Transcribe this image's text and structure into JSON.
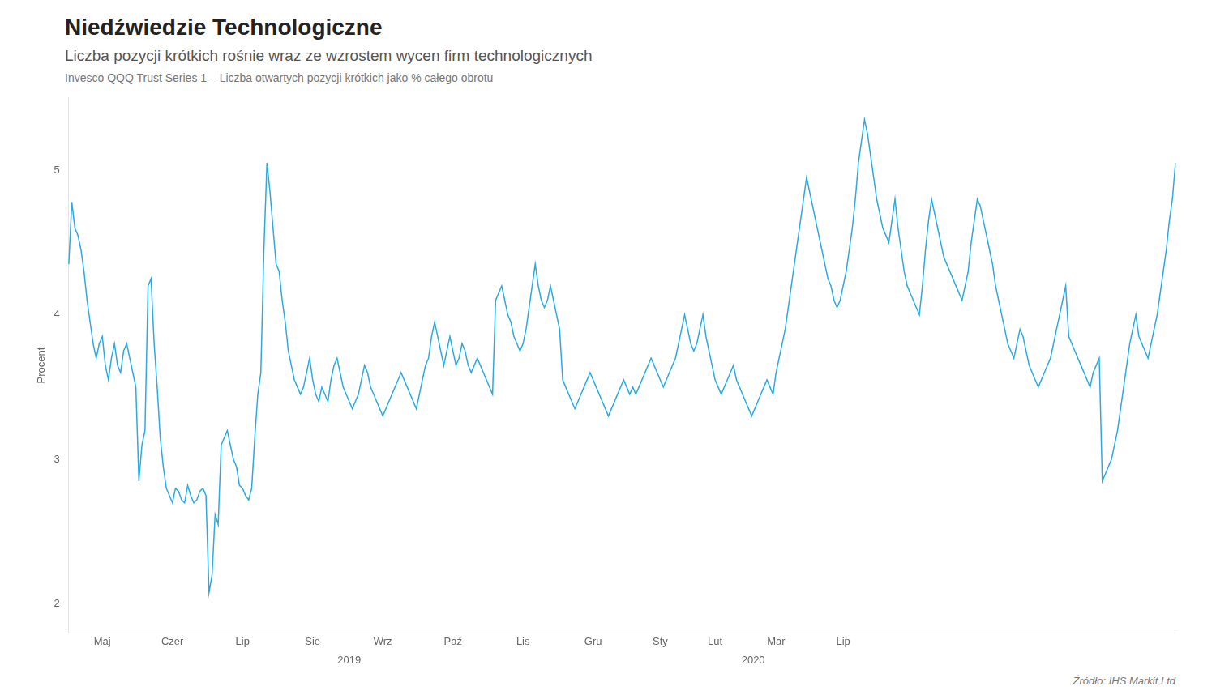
{
  "chart_data": {
    "type": "line",
    "title": "Niedźwiedzie Technologiczne",
    "subtitle": "Liczba pozycji krótkich rośnie wraz ze wzrostem wycen firm technologicznych",
    "caption": "Invesco QQQ Trust Series 1 – Liczba otwartych pozycji krótkich jako % całego obrotu",
    "source": "Źródło: IHS Markit Ltd",
    "ylabel": "Procent",
    "color": "#29abe2",
    "ylim": [
      1.8,
      5.5
    ],
    "yticks": [
      2,
      3,
      4,
      5
    ],
    "grid": false,
    "annotations": [
      {
        "text": "2019",
        "x": 92
      },
      {
        "text": "2020",
        "x": 224.5
      }
    ],
    "categories": [
      null,
      null,
      null,
      null,
      null,
      null,
      null,
      null,
      null,
      null,
      null,
      "Maj",
      null,
      null,
      null,
      null,
      null,
      null,
      null,
      null,
      null,
      null,
      null,
      null,
      null,
      null,
      null,
      null,
      null,
      null,
      null,
      null,
      null,
      null,
      "Czer",
      null,
      null,
      null,
      null,
      null,
      null,
      null,
      null,
      null,
      null,
      null,
      null,
      null,
      null,
      null,
      null,
      null,
      null,
      null,
      null,
      null,
      null,
      "Lip",
      null,
      null,
      null,
      null,
      null,
      null,
      null,
      null,
      null,
      null,
      null,
      null,
      null,
      null,
      null,
      null,
      null,
      null,
      null,
      null,
      null,
      null,
      "Sie",
      null,
      null,
      null,
      null,
      null,
      null,
      null,
      null,
      null,
      null,
      null,
      null,
      null,
      null,
      null,
      null,
      null,
      null,
      null,
      null,
      null,
      null,
      "Wrz",
      null,
      null,
      null,
      null,
      null,
      null,
      null,
      null,
      null,
      null,
      null,
      null,
      null,
      null,
      null,
      null,
      null,
      null,
      null,
      null,
      null,
      null,
      "Paź",
      null,
      null,
      null,
      null,
      null,
      null,
      null,
      null,
      null,
      null,
      null,
      null,
      null,
      null,
      null,
      null,
      null,
      null,
      null,
      null,
      null,
      null,
      "Lis",
      null,
      null,
      null,
      null,
      null,
      null,
      null,
      null,
      null,
      null,
      null,
      null,
      null,
      null,
      null,
      null,
      null,
      null,
      null,
      null,
      null,
      null,
      "Gru",
      null,
      null,
      null,
      null,
      null,
      null,
      null,
      null,
      null,
      null,
      null,
      null,
      null,
      null,
      null,
      null,
      null,
      null,
      null,
      null,
      null,
      "Sty",
      null,
      null,
      null,
      null,
      null,
      null,
      null,
      null,
      null,
      null,
      null,
      null,
      null,
      null,
      null,
      null,
      null,
      "Lut",
      null,
      null,
      null,
      null,
      null,
      null,
      null,
      null,
      null,
      null,
      null,
      null,
      null,
      null,
      null,
      null,
      null,
      null,
      null,
      "Mar",
      null,
      null,
      null,
      null,
      null,
      null,
      null,
      null,
      null,
      null,
      null,
      null,
      null,
      null,
      null,
      null,
      null,
      null,
      null,
      null,
      null,
      "Lip",
      null,
      null,
      null,
      null,
      null,
      null,
      null,
      null,
      null,
      null,
      null,
      null,
      null,
      null,
      null,
      null,
      null,
      null,
      null,
      null,
      null,
      null,
      null,
      null,
      null,
      null,
      null,
      null,
      null,
      null,
      null,
      null,
      null,
      null,
      null,
      null,
      null,
      null,
      null,
      null,
      null,
      null,
      null,
      null,
      null,
      null,
      null,
      null,
      null,
      null,
      null,
      null,
      null,
      null,
      null,
      null,
      null,
      null,
      null,
      null,
      null,
      null,
      null,
      null,
      null,
      null,
      null,
      null,
      null,
      null,
      null,
      null,
      null,
      null,
      null,
      null,
      null,
      null,
      null,
      null,
      null,
      null,
      null,
      null,
      null,
      null,
      null,
      null,
      null,
      null,
      null,
      null,
      null,
      null,
      null,
      null,
      null,
      null,
      null,
      null,
      null,
      null,
      null,
      null,
      null,
      null,
      null,
      null,
      null
    ],
    "values": [
      4.35,
      4.78,
      4.6,
      4.55,
      4.45,
      4.3,
      4.1,
      3.95,
      3.8,
      3.7,
      3.8,
      3.85,
      3.65,
      3.55,
      3.7,
      3.8,
      3.65,
      3.6,
      3.75,
      3.8,
      3.7,
      3.6,
      3.5,
      2.85,
      3.1,
      3.2,
      4.2,
      4.25,
      3.8,
      3.5,
      3.15,
      2.95,
      2.8,
      2.75,
      2.7,
      2.8,
      2.78,
      2.72,
      2.7,
      2.82,
      2.75,
      2.7,
      2.72,
      2.78,
      2.8,
      2.75,
      2.08,
      2.2,
      2.62,
      2.55,
      3.1,
      3.15,
      3.2,
      3.1,
      3.0,
      2.95,
      2.82,
      2.8,
      2.75,
      2.72,
      2.8,
      3.15,
      3.45,
      3.6,
      4.45,
      5.05,
      4.85,
      4.6,
      4.35,
      4.3,
      4.1,
      3.95,
      3.75,
      3.65,
      3.55,
      3.5,
      3.45,
      3.5,
      3.6,
      3.7,
      3.55,
      3.45,
      3.4,
      3.5,
      3.45,
      3.4,
      3.55,
      3.65,
      3.7,
      3.6,
      3.5,
      3.45,
      3.4,
      3.35,
      3.4,
      3.45,
      3.55,
      3.65,
      3.6,
      3.5,
      3.45,
      3.4,
      3.35,
      3.3,
      3.35,
      3.4,
      3.45,
      3.5,
      3.55,
      3.6,
      3.55,
      3.5,
      3.45,
      3.4,
      3.35,
      3.45,
      3.55,
      3.65,
      3.7,
      3.85,
      3.95,
      3.85,
      3.75,
      3.65,
      3.75,
      3.85,
      3.75,
      3.65,
      3.7,
      3.8,
      3.75,
      3.65,
      3.6,
      3.65,
      3.7,
      3.65,
      3.6,
      3.55,
      3.5,
      3.45,
      4.1,
      4.15,
      4.2,
      4.1,
      4.0,
      3.95,
      3.85,
      3.8,
      3.75,
      3.8,
      3.9,
      4.05,
      4.2,
      4.35,
      4.2,
      4.1,
      4.05,
      4.1,
      4.2,
      4.1,
      4.0,
      3.9,
      3.55,
      3.5,
      3.45,
      3.4,
      3.35,
      3.4,
      3.45,
      3.5,
      3.55,
      3.6,
      3.55,
      3.5,
      3.45,
      3.4,
      3.35,
      3.3,
      3.35,
      3.4,
      3.45,
      3.5,
      3.55,
      3.5,
      3.45,
      3.5,
      3.45,
      3.5,
      3.55,
      3.6,
      3.65,
      3.7,
      3.65,
      3.6,
      3.55,
      3.5,
      3.55,
      3.6,
      3.65,
      3.7,
      3.8,
      3.9,
      4.0,
      3.9,
      3.8,
      3.75,
      3.8,
      3.9,
      4.0,
      3.85,
      3.75,
      3.65,
      3.55,
      3.5,
      3.45,
      3.5,
      3.55,
      3.6,
      3.65,
      3.55,
      3.5,
      3.45,
      3.4,
      3.35,
      3.3,
      3.35,
      3.4,
      3.45,
      3.5,
      3.55,
      3.5,
      3.45,
      3.6,
      3.7,
      3.8,
      3.9,
      4.05,
      4.2,
      4.35,
      4.5,
      4.65,
      4.8,
      4.95,
      4.85,
      4.75,
      4.65,
      4.55,
      4.45,
      4.35,
      4.25,
      4.2,
      4.1,
      4.05,
      4.1,
      4.2,
      4.3,
      4.45,
      4.6,
      4.8,
      5.05,
      5.2,
      5.35,
      5.25,
      5.1,
      4.95,
      4.8,
      4.7,
      4.6,
      4.55,
      4.5,
      4.65,
      4.8,
      4.6,
      4.45,
      4.3,
      4.2,
      4.15,
      4.1,
      4.05,
      4.0,
      4.2,
      4.45,
      4.65,
      4.8,
      4.7,
      4.6,
      4.5,
      4.4,
      4.35,
      4.3,
      4.25,
      4.2,
      4.15,
      4.1,
      4.2,
      4.3,
      4.5,
      4.65,
      4.8,
      4.75,
      4.65,
      4.55,
      4.45,
      4.35,
      4.2,
      4.1,
      4.0,
      3.9,
      3.8,
      3.75,
      3.7,
      3.8,
      3.9,
      3.85,
      3.75,
      3.65,
      3.6,
      3.55,
      3.5,
      3.55,
      3.6,
      3.65,
      3.7,
      3.8,
      3.9,
      4.0,
      4.1,
      4.2,
      3.85,
      3.8,
      3.75,
      3.7,
      3.65,
      3.6,
      3.55,
      3.5,
      3.6,
      3.65,
      3.7,
      2.85,
      2.9,
      2.95,
      3.0,
      3.1,
      3.2,
      3.35,
      3.5,
      3.65,
      3.8,
      3.9,
      4.0,
      3.85,
      3.8,
      3.75,
      3.7,
      3.8,
      3.9,
      4.0,
      4.15,
      4.3,
      4.45,
      4.65,
      4.8,
      5.05
    ]
  }
}
